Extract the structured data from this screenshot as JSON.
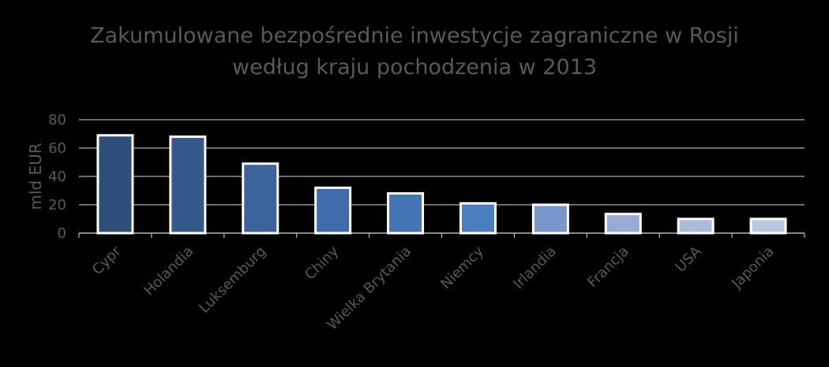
{
  "chart_data": {
    "type": "bar",
    "title": [
      "Zakumulowane bezpośrednie inwestycje zagraniczne w Rosji",
      "według kraju pochodzenia w 2013"
    ],
    "ylabel": "mld EUR",
    "xlabel": "",
    "ylim": [
      0,
      80
    ],
    "yticks": [
      0,
      20,
      40,
      60,
      80
    ],
    "grid": true,
    "categories": [
      "Cypr",
      "Holandia",
      "Luksemburg",
      "Chiny",
      "Wielka Brytania",
      "Niemcy",
      "Irlandia",
      "Francja",
      "USA",
      "Japonia"
    ],
    "values": [
      69,
      68,
      49,
      32,
      28,
      21,
      20,
      13.5,
      10,
      10
    ],
    "colors": [
      "#2e4e7a",
      "#34588a",
      "#3b649a",
      "#3f6da9",
      "#4474b4",
      "#4a7ebf",
      "#7998c9",
      "#97acd5",
      "#aabbdb",
      "#bac7e2"
    ]
  }
}
